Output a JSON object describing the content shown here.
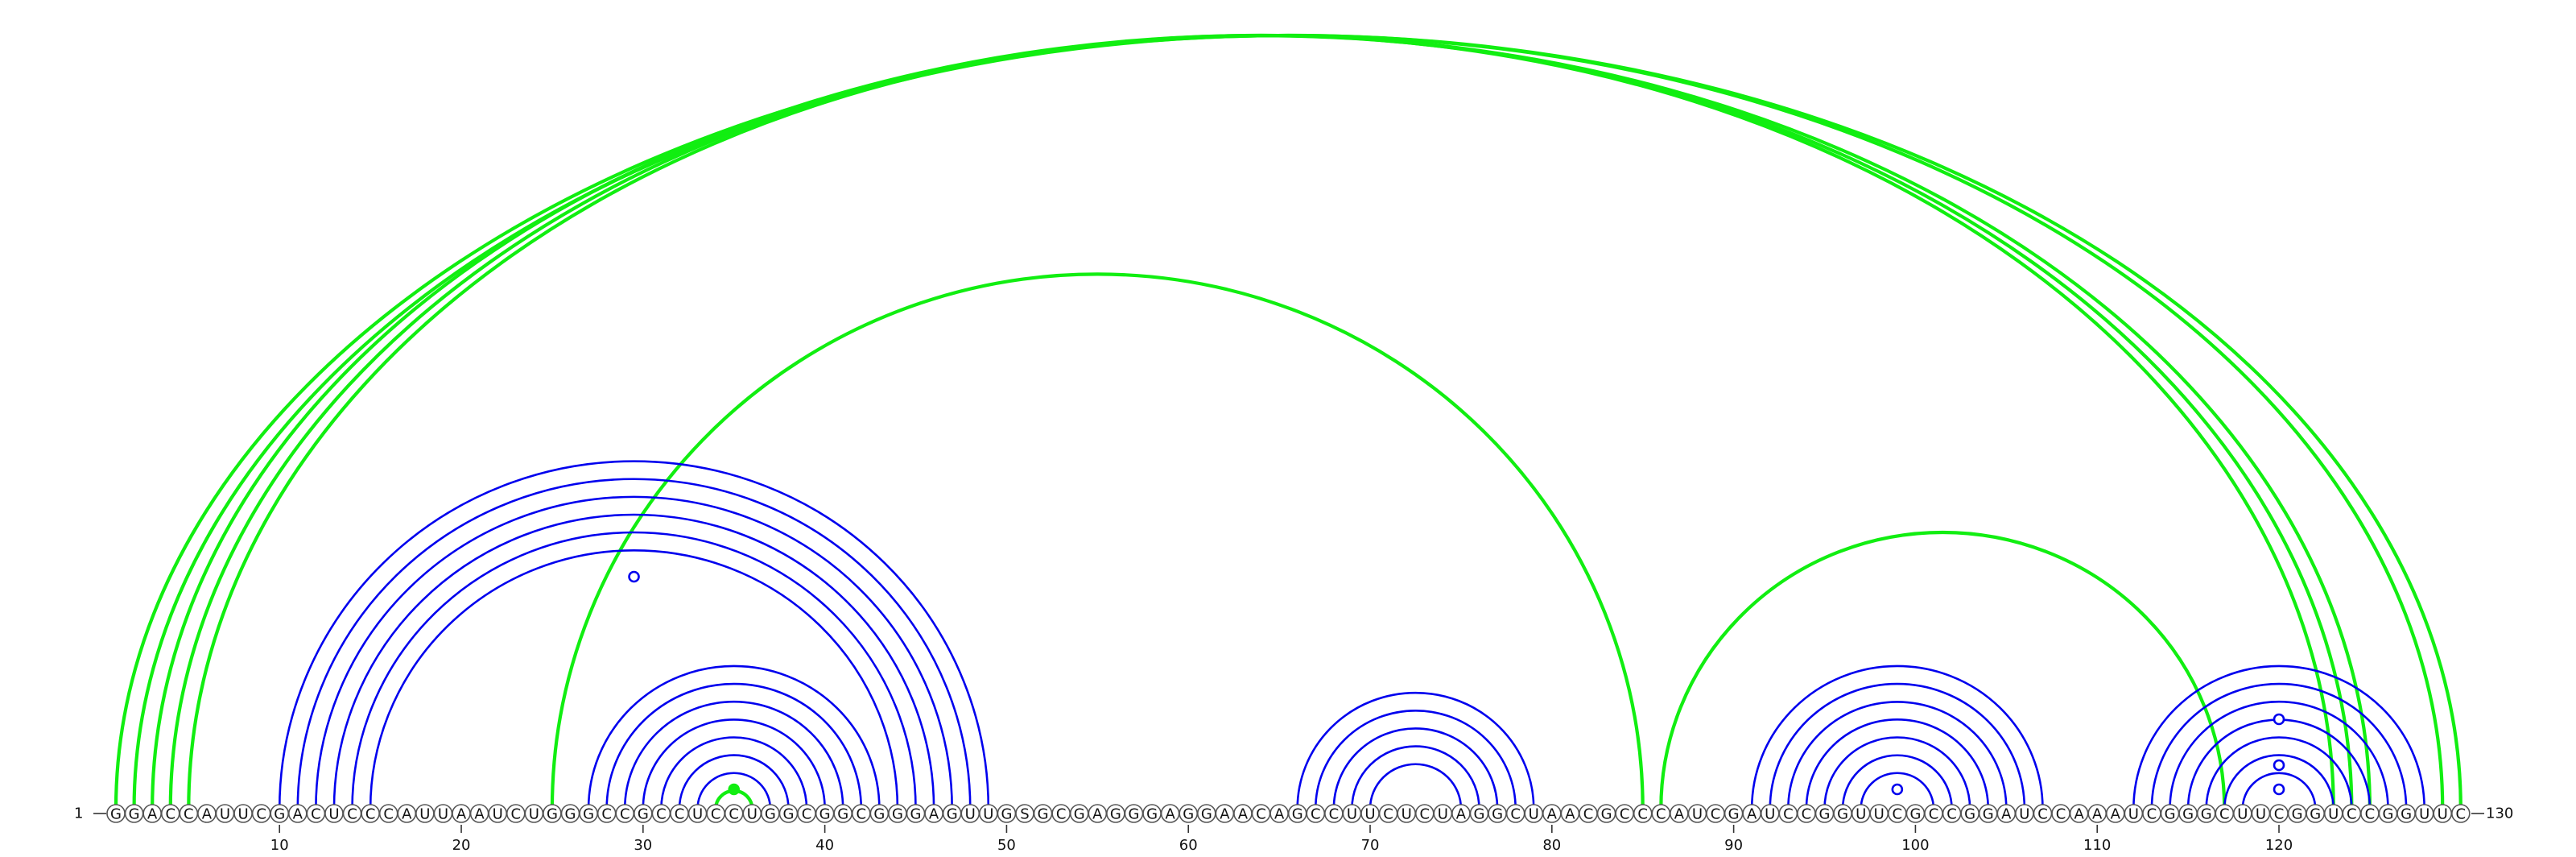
{
  "diagram": {
    "type": "rna-arc-diagram",
    "sequence": "GGACCAUUCGACUCCCAUUAAUCUGGGCCGCCUCCUGGCGGCGGGAGUUGSGCGAGGGAGGAACAGCCUUCUCUAGGCUAACGCCCAUCGAUCCGGUUCGCCGGAUCCAAAUCGGGCUUCGGUCCGGUUC",
    "start_label": "1",
    "end_label": "130",
    "ticks": [
      "10",
      "20",
      "30",
      "40",
      "50",
      "60",
      "70",
      "80",
      "90",
      "100",
      "110",
      "120"
    ],
    "colors": {
      "blue_arcs": "#0000ee",
      "green_arcs": "#11ee11",
      "nucleotide_outline": "#555555",
      "text": "#111111"
    },
    "blue_helices": [
      {
        "i": 10,
        "j": 49,
        "len": 6
      },
      {
        "i": 27,
        "j": 43,
        "len": 7
      },
      {
        "i": 66,
        "j": 79,
        "len": 5
      },
      {
        "i": 91,
        "j": 107,
        "len": 7
      },
      {
        "i": 112,
        "j": 128,
        "len": 7
      }
    ],
    "green_helices": [
      {
        "i": 1,
        "j": 130,
        "len": 1
      },
      {
        "i": 2,
        "j": 129,
        "len": 1
      },
      {
        "i": 3,
        "j": 125,
        "len": 3
      },
      {
        "i": 25,
        "j": 85,
        "len": 1
      },
      {
        "i": 86,
        "j": 117,
        "len": 1
      },
      {
        "i": 34,
        "j": 36,
        "len": 1
      }
    ],
    "markers": [
      {
        "nt": 29.5,
        "color": "blue",
        "filled": false
      },
      {
        "nt": 35,
        "color": "green",
        "filled": true
      },
      {
        "nt": 99,
        "color": "blue",
        "filled": false
      },
      {
        "nt": 120,
        "color": "blue",
        "filled": false
      },
      {
        "nt": 120,
        "color": "blue",
        "filled": false,
        "level": 2
      },
      {
        "nt": 120,
        "color": "blue",
        "filled": false,
        "level": 3
      }
    ]
  }
}
